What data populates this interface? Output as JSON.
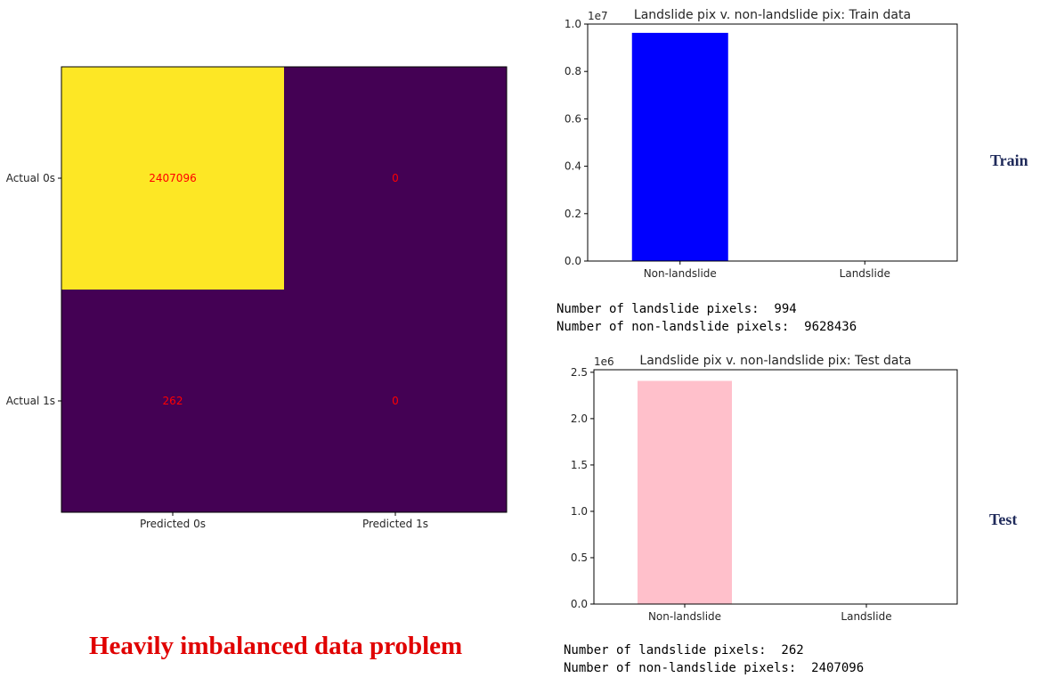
{
  "chart_data": [
    {
      "type": "heatmap",
      "row_labels": [
        "Actual 0s",
        "Actual 1s"
      ],
      "col_labels": [
        "Predicted 0s",
        "Predicted 1s"
      ],
      "values": [
        [
          2407096,
          0
        ],
        [
          262,
          0
        ]
      ],
      "cell_text": [
        [
          "2407096",
          "0"
        ],
        [
          "262",
          "0"
        ]
      ],
      "colormap": "viridis",
      "colors": {
        "high": "#fde725",
        "low": "#440154",
        "annotation": "#ff0000"
      }
    },
    {
      "type": "bar",
      "title": "Landslide pix v. non-landslide pix: Train data",
      "categories": [
        "Non-landslide",
        "Landslide"
      ],
      "values": [
        9628436,
        994
      ],
      "ylim": [
        0,
        10000000
      ],
      "offset_text": "1e7",
      "yticks": [
        0,
        2000000,
        4000000,
        6000000,
        8000000,
        10000000
      ],
      "ytick_labels": [
        "0.0",
        "0.2",
        "0.4",
        "0.6",
        "0.8",
        "1.0"
      ],
      "color": "#0000ff"
    },
    {
      "type": "bar",
      "title": "Landslide pix v. non-landslide pix: Test data",
      "categories": [
        "Non-landslide",
        "Landslide"
      ],
      "values": [
        2407096,
        262
      ],
      "ylim": [
        0,
        2527450
      ],
      "offset_text": "1e6",
      "yticks": [
        0,
        500000,
        1000000,
        1500000,
        2000000,
        2500000
      ],
      "ytick_labels": [
        "0.0",
        "0.5",
        "1.0",
        "1.5",
        "2.0",
        "2.5"
      ],
      "color": "#ffc0cb"
    }
  ],
  "train_stats": {
    "landslide_line": "Number of landslide pixels:  994",
    "nonlandslide_line": "Number of non-landslide pixels:  9628436"
  },
  "test_stats": {
    "landslide_line": "Number of landslide pixels:  262",
    "nonlandslide_line": "Number of non-landslide pixels:  2407096"
  },
  "labels": {
    "train": "Train",
    "test": "Test",
    "headline": "Heavily imbalanced data problem"
  }
}
